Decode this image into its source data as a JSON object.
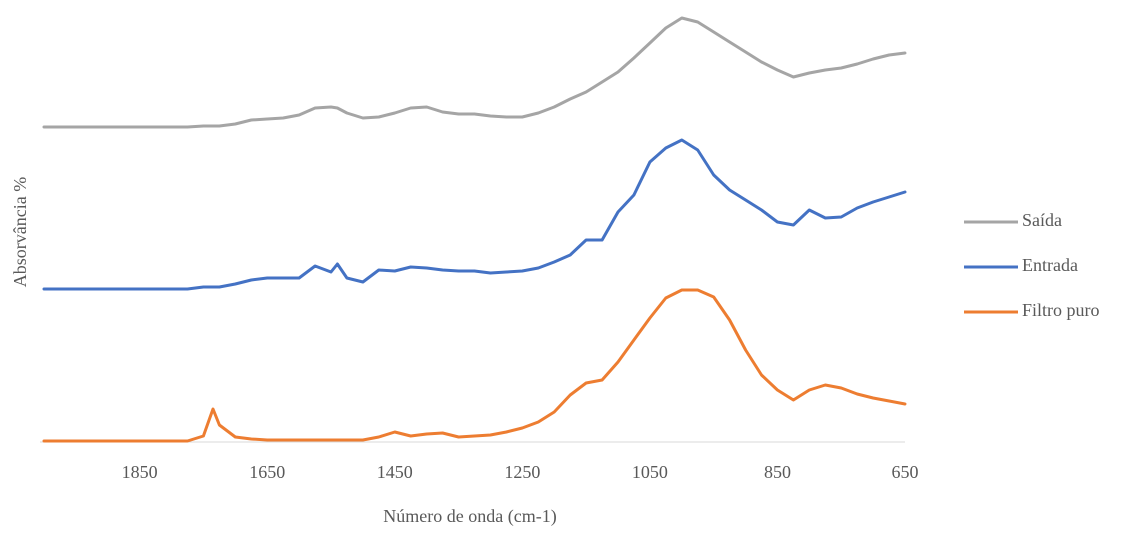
{
  "chart_data": {
    "type": "line",
    "x_label": "Número de onda (cm-1)",
    "y_label": "Absorvância %",
    "x": [
      2000,
      1975,
      1950,
      1925,
      1900,
      1875,
      1850,
      1825,
      1800,
      1775,
      1750,
      1735,
      1725,
      1700,
      1675,
      1650,
      1625,
      1600,
      1575,
      1550,
      1540,
      1525,
      1500,
      1475,
      1450,
      1425,
      1400,
      1375,
      1350,
      1325,
      1300,
      1275,
      1250,
      1225,
      1200,
      1175,
      1150,
      1125,
      1100,
      1075,
      1050,
      1025,
      1000,
      975,
      950,
      925,
      900,
      875,
      850,
      825,
      800,
      775,
      750,
      725,
      700,
      675,
      650
    ],
    "xlim": [
      2000,
      650
    ],
    "xticks": [
      1850,
      1650,
      1450,
      1250,
      1050,
      850,
      650
    ],
    "ylim": [
      0,
      43
    ],
    "legend": "right",
    "series": [
      {
        "name": "Saída",
        "color": "#a5a5a5",
        "values": [
          31.5,
          31.5,
          31.5,
          31.5,
          31.5,
          31.5,
          31.5,
          31.5,
          31.5,
          31.5,
          31.6,
          31.6,
          31.6,
          31.8,
          32.2,
          32.3,
          32.4,
          32.7,
          33.4,
          33.5,
          33.4,
          32.9,
          32.4,
          32.5,
          32.9,
          33.4,
          33.5,
          33,
          32.8,
          32.8,
          32.6,
          32.5,
          32.5,
          32.9,
          33.5,
          34.3,
          35,
          36,
          37,
          38.4,
          39.9,
          41.4,
          42.4,
          42,
          41,
          40,
          39,
          38,
          37.2,
          36.5,
          36.9,
          37.2,
          37.4,
          37.8,
          38.3,
          38.7,
          38.9
        ]
      },
      {
        "name": "Entrada",
        "color": "#4472c4",
        "values": [
          15.3,
          15.3,
          15.3,
          15.3,
          15.3,
          15.3,
          15.3,
          15.3,
          15.3,
          15.3,
          15.5,
          15.5,
          15.5,
          15.8,
          16.2,
          16.4,
          16.4,
          16.4,
          17.6,
          17,
          17.8,
          16.4,
          16,
          17.2,
          17.1,
          17.5,
          17.4,
          17.2,
          17.1,
          17.1,
          16.9,
          17,
          17.1,
          17.4,
          18,
          18.7,
          20.2,
          20.2,
          23,
          24.7,
          28,
          29.4,
          30.2,
          29.2,
          26.7,
          25.2,
          24.2,
          23.2,
          22,
          21.7,
          23.2,
          22.4,
          22.5,
          23.4,
          24,
          24.5,
          25
        ]
      },
      {
        "name": "Filtro puro",
        "color": "#ed7d31",
        "values": [
          0.1,
          0.1,
          0.1,
          0.1,
          0.1,
          0.1,
          0.1,
          0.1,
          0.1,
          0.1,
          0.6,
          3.3,
          1.7,
          0.5,
          0.3,
          0.2,
          0.2,
          0.2,
          0.2,
          0.2,
          0.2,
          0.2,
          0.2,
          0.5,
          1,
          0.6,
          0.8,
          0.9,
          0.5,
          0.6,
          0.7,
          1,
          1.4,
          2,
          3,
          4.7,
          5.9,
          6.2,
          8,
          10.2,
          12.4,
          14.4,
          15.2,
          15.2,
          14.5,
          12.2,
          9.2,
          6.7,
          5.2,
          4.2,
          5.2,
          5.7,
          5.4,
          4.8,
          4.4,
          4.1,
          3.8
        ]
      }
    ]
  }
}
